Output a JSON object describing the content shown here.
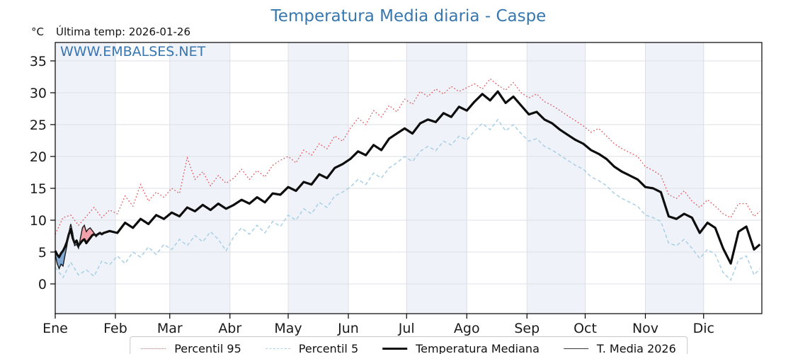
{
  "watermark": {
    "text": "WWW.EMBALSES.NET",
    "color": "#2f6fad"
  },
  "header": {
    "unit": "°C",
    "last_temp": "Última temp: 2026-01-26"
  },
  "colors": {
    "title": "#3877ae",
    "band": "#eff3f9",
    "grid": "#dcdfe4",
    "frame": "#000000",
    "p95": "#e05a5f",
    "p5": "#a9cfe5",
    "median": "#0d0d0d",
    "t2026": "#1a1a1a",
    "fill_above": "#f2a1aa",
    "fill_below": "#7fa9d2"
  },
  "chart_data": {
    "type": "line",
    "title": "Temperatura Media diaria - Caspe",
    "ylabel": "°C",
    "annotation": "Última temp: 2026-01-26",
    "ylim": [
      -4.7,
      37.9
    ],
    "yticks": [
      0,
      5,
      10,
      15,
      20,
      25,
      30,
      35
    ],
    "grid": true,
    "legend_position": "bottom",
    "x_months": [
      "Ene",
      "Feb",
      "Mar",
      "Abr",
      "May",
      "Jun",
      "Jul",
      "Ago",
      "Sep",
      "Oct",
      "Nov",
      "Dic"
    ],
    "month_start_days": [
      1,
      32,
      60,
      91,
      121,
      152,
      182,
      213,
      244,
      274,
      305,
      335,
      366
    ],
    "days_in_year": 365,
    "legend": [
      "Percentil 95",
      "Percentil 5",
      "Temperatura Mediana",
      "T. Media 2026"
    ],
    "series": [
      {
        "name": "Percentil 95",
        "style": "dotted",
        "color": "#e05a5f",
        "days": [
          1,
          5,
          9,
          13,
          17,
          21,
          25,
          29,
          33,
          37,
          41,
          45,
          49,
          53,
          57,
          61,
          65,
          69,
          73,
          77,
          81,
          85,
          89,
          93,
          97,
          101,
          105,
          109,
          113,
          117,
          121,
          125,
          129,
          133,
          137,
          141,
          145,
          149,
          153,
          157,
          161,
          165,
          169,
          173,
          177,
          181,
          185,
          189,
          193,
          197,
          201,
          205,
          209,
          213,
          217,
          221,
          225,
          229,
          233,
          237,
          241,
          245,
          249,
          253,
          257,
          261,
          265,
          269,
          273,
          277,
          281,
          285,
          289,
          293,
          297,
          301,
          305,
          309,
          313,
          317,
          321,
          325,
          329,
          333,
          337,
          341,
          345,
          349,
          353,
          357,
          361,
          364
        ],
        "values": [
          7.8,
          10.4,
          10.8,
          9.2,
          10.6,
          12.0,
          10.4,
          11.6,
          11.0,
          13.8,
          12.2,
          15.6,
          13.0,
          14.4,
          13.6,
          15.0,
          14.2,
          19.8,
          16.4,
          17.6,
          15.4,
          17.0,
          15.8,
          16.6,
          18.0,
          16.4,
          17.8,
          16.8,
          18.6,
          19.4,
          20.0,
          19.0,
          21.0,
          20.2,
          22.0,
          21.2,
          23.2,
          22.4,
          24.4,
          26.0,
          25.0,
          27.2,
          26.2,
          28.0,
          27.0,
          29.0,
          28.2,
          30.2,
          29.4,
          30.6,
          29.8,
          31.0,
          30.2,
          30.8,
          31.4,
          30.6,
          32.2,
          31.2,
          30.4,
          31.6,
          30.0,
          29.2,
          29.8,
          28.6,
          28.0,
          27.2,
          26.4,
          25.6,
          24.8,
          23.8,
          24.4,
          23.2,
          22.0,
          21.2,
          20.6,
          20.0,
          18.4,
          17.8,
          17.0,
          14.0,
          13.4,
          14.6,
          13.0,
          12.0,
          13.2,
          12.2,
          11.0,
          10.4,
          12.6,
          12.6,
          10.6,
          11.4
        ]
      },
      {
        "name": "Percentil 5",
        "style": "dashed",
        "color": "#a9cfe5",
        "days": [
          1,
          5,
          9,
          13,
          17,
          21,
          25,
          29,
          33,
          37,
          41,
          45,
          49,
          53,
          57,
          61,
          65,
          69,
          73,
          77,
          81,
          85,
          89,
          93,
          97,
          101,
          105,
          109,
          113,
          117,
          121,
          125,
          129,
          133,
          137,
          141,
          145,
          149,
          153,
          157,
          161,
          165,
          169,
          173,
          177,
          181,
          185,
          189,
          193,
          197,
          201,
          205,
          209,
          213,
          217,
          221,
          225,
          229,
          233,
          237,
          241,
          245,
          249,
          253,
          257,
          261,
          265,
          269,
          273,
          277,
          281,
          285,
          289,
          293,
          297,
          301,
          305,
          309,
          313,
          317,
          321,
          325,
          329,
          333,
          337,
          341,
          345,
          349,
          353,
          357,
          361,
          364
        ],
        "values": [
          2.6,
          1.0,
          3.4,
          1.4,
          2.2,
          1.2,
          3.6,
          3.0,
          4.4,
          3.2,
          5.0,
          4.2,
          5.8,
          4.6,
          6.2,
          5.4,
          7.0,
          6.0,
          7.6,
          6.6,
          8.2,
          7.0,
          5.2,
          7.4,
          8.8,
          7.8,
          9.2,
          8.0,
          9.8,
          9.0,
          10.8,
          10.0,
          11.8,
          11.0,
          12.8,
          12.0,
          13.8,
          14.4,
          15.2,
          16.4,
          15.6,
          17.4,
          16.6,
          18.2,
          19.0,
          20.0,
          19.2,
          20.8,
          21.6,
          20.9,
          22.4,
          21.8,
          23.2,
          22.6,
          24.0,
          25.2,
          24.2,
          25.8,
          24.0,
          25.0,
          23.6,
          22.4,
          22.8,
          21.6,
          21.0,
          20.2,
          19.4,
          18.6,
          18.0,
          16.8,
          16.2,
          15.4,
          14.2,
          13.4,
          12.8,
          12.2,
          10.8,
          10.4,
          9.8,
          6.4,
          6.0,
          7.0,
          5.6,
          4.0,
          5.4,
          4.6,
          1.8,
          0.6,
          3.8,
          4.4,
          1.4,
          2.4
        ]
      },
      {
        "name": "Temperatura Mediana",
        "style": "solid-thick",
        "color": "#0d0d0d",
        "days": [
          1,
          2,
          3,
          4,
          5,
          6,
          7,
          8,
          9,
          10,
          11,
          12,
          13,
          14,
          15,
          16,
          17,
          18,
          19,
          20,
          21,
          22,
          23,
          24,
          25,
          26,
          29,
          33,
          37,
          41,
          45,
          49,
          53,
          57,
          61,
          65,
          69,
          73,
          77,
          81,
          85,
          89,
          93,
          97,
          101,
          105,
          109,
          113,
          117,
          121,
          125,
          129,
          133,
          137,
          141,
          145,
          149,
          153,
          157,
          161,
          165,
          169,
          173,
          177,
          181,
          185,
          189,
          193,
          197,
          201,
          205,
          209,
          213,
          217,
          221,
          225,
          229,
          233,
          237,
          241,
          245,
          249,
          253,
          257,
          261,
          265,
          269,
          273,
          277,
          281,
          285,
          289,
          293,
          297,
          301,
          305,
          309,
          313,
          317,
          321,
          325,
          329,
          333,
          337,
          341,
          345,
          349,
          353,
          357,
          361,
          364
        ],
        "values": [
          5.2,
          4.6,
          4.2,
          4.8,
          5.2,
          5.8,
          6.6,
          7.8,
          8.6,
          7.2,
          6.4,
          6.8,
          6.0,
          6.4,
          6.8,
          7.0,
          6.4,
          6.8,
          7.2,
          7.6,
          7.8,
          7.6,
          7.8,
          8.0,
          7.8,
          8.0,
          8.3,
          8.0,
          9.6,
          8.8,
          10.2,
          9.4,
          10.8,
          10.2,
          11.2,
          10.6,
          12.0,
          11.4,
          12.4,
          11.6,
          12.6,
          11.8,
          12.4,
          13.2,
          12.6,
          13.6,
          12.8,
          14.2,
          14.0,
          15.2,
          14.6,
          16.0,
          15.6,
          17.2,
          16.6,
          18.2,
          18.8,
          19.6,
          20.8,
          20.2,
          21.8,
          21.0,
          22.8,
          23.6,
          24.4,
          23.6,
          25.2,
          25.8,
          25.4,
          26.8,
          26.2,
          27.8,
          27.2,
          28.6,
          29.8,
          28.8,
          30.2,
          28.4,
          29.4,
          28.0,
          26.6,
          27.0,
          25.8,
          25.2,
          24.2,
          23.4,
          22.6,
          22.0,
          21.0,
          20.4,
          19.6,
          18.4,
          17.6,
          17.0,
          16.4,
          15.2,
          15.0,
          14.4,
          10.6,
          10.2,
          11.0,
          10.4,
          8.0,
          9.6,
          8.8,
          5.6,
          3.2,
          8.2,
          9.0,
          5.4,
          6.2
        ]
      },
      {
        "name": "T. Media 2026",
        "style": "solid-thin",
        "color": "#1a1a1a",
        "days": [
          1,
          2,
          3,
          4,
          5,
          6,
          7,
          8,
          9,
          10,
          11,
          12,
          13,
          14,
          15,
          16,
          17,
          18,
          19,
          20,
          21,
          22,
          23,
          24,
          25,
          26
        ],
        "values": [
          4.6,
          3.2,
          2.4,
          3.1,
          2.8,
          4.4,
          6.0,
          8.0,
          9.4,
          8.0,
          6.0,
          6.2,
          5.6,
          7.2,
          8.8,
          9.2,
          8.2,
          8.6,
          8.8,
          8.4,
          8.0,
          7.4,
          7.7,
          8.1,
          7.7,
          7.9
        ]
      }
    ],
    "fills": {
      "description": "area between T. Media 2026 and Temperatura Mediana (days 1-26)",
      "above_color": "#f2a1aa",
      "below_color": "#7fa9d2"
    }
  }
}
